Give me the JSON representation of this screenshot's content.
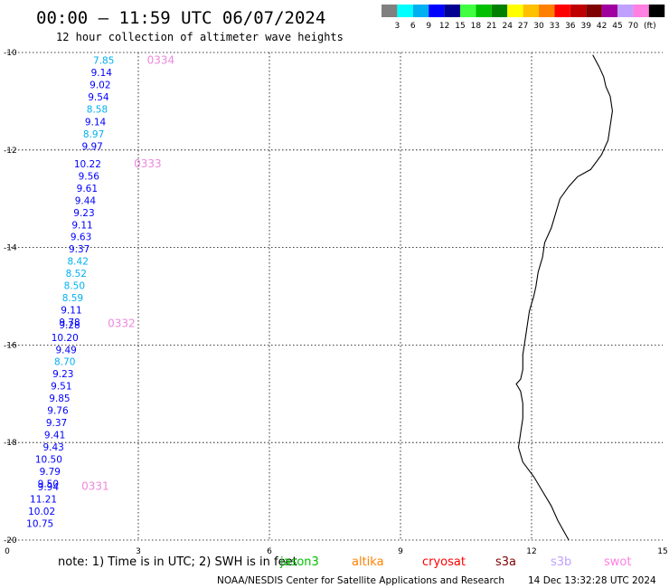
{
  "header": {
    "title": "00:00 – 11:59 UTC 06/07/2024",
    "subtitle": "12 hour collection of altimeter wave heights"
  },
  "legend": {
    "unit": "(ft)",
    "swatches": [
      {
        "label": "",
        "color": "#808080"
      },
      {
        "label": "3",
        "color": "#00ffff"
      },
      {
        "label": "6",
        "color": "#00b0f0"
      },
      {
        "label": "9",
        "color": "#0000ff"
      },
      {
        "label": "12",
        "color": "#000090"
      },
      {
        "label": "15",
        "color": "#40ff40"
      },
      {
        "label": "18",
        "color": "#00c000"
      },
      {
        "label": "21",
        "color": "#008000"
      },
      {
        "label": "24",
        "color": "#ffff00"
      },
      {
        "label": "27",
        "color": "#ffc000"
      },
      {
        "label": "30",
        "color": "#ff8000"
      },
      {
        "label": "33",
        "color": "#ff0000"
      },
      {
        "label": "36",
        "color": "#c00000"
      },
      {
        "label": "39",
        "color": "#800000"
      },
      {
        "label": "42",
        "color": "#a000a0"
      },
      {
        "label": "45",
        "color": "#c0a0ff"
      },
      {
        "label": "70",
        "color": "#ff80e0"
      },
      {
        "label": "",
        "color": "#000000"
      }
    ]
  },
  "map": {
    "lon_min": 0,
    "lon_max": 15,
    "lat_min": -20,
    "lat_max": -10,
    "x_ticks": [
      "0",
      "3",
      "6",
      "9",
      "12",
      "15"
    ],
    "y_ticks": [
      "-10",
      "-12",
      "-14",
      "-16",
      "-18",
      "-20"
    ],
    "coastline": [
      [
        13.4,
        -10.05
      ],
      [
        13.55,
        -10.3
      ],
      [
        13.65,
        -10.5
      ],
      [
        13.7,
        -10.7
      ],
      [
        13.8,
        -10.9
      ],
      [
        13.85,
        -11.2
      ],
      [
        13.8,
        -11.5
      ],
      [
        13.75,
        -11.8
      ],
      [
        13.6,
        -12.1
      ],
      [
        13.35,
        -12.4
      ],
      [
        13.05,
        -12.55
      ],
      [
        12.85,
        -12.75
      ],
      [
        12.65,
        -13.0
      ],
      [
        12.55,
        -13.3
      ],
      [
        12.45,
        -13.6
      ],
      [
        12.3,
        -13.9
      ],
      [
        12.25,
        -14.2
      ],
      [
        12.15,
        -14.5
      ],
      [
        12.1,
        -14.8
      ],
      [
        12.05,
        -15.0
      ],
      [
        11.95,
        -15.3
      ],
      [
        11.9,
        -15.6
      ],
      [
        11.85,
        -15.9
      ],
      [
        11.8,
        -16.2
      ],
      [
        11.8,
        -16.5
      ],
      [
        11.75,
        -16.7
      ],
      [
        11.65,
        -16.8
      ],
      [
        11.75,
        -16.95
      ],
      [
        11.8,
        -17.2
      ],
      [
        11.8,
        -17.5
      ],
      [
        11.75,
        -17.8
      ],
      [
        11.7,
        -18.1
      ],
      [
        11.8,
        -18.4
      ],
      [
        12.05,
        -18.7
      ],
      [
        12.25,
        -19.0
      ],
      [
        12.45,
        -19.3
      ],
      [
        12.6,
        -19.6
      ],
      [
        12.85,
        -20.0
      ]
    ]
  },
  "wave_values": [
    {
      "text": "7.85",
      "lon": 2.45,
      "lat": -10.16,
      "color": "#00b0f0"
    },
    {
      "text": "9.14",
      "lon": 2.4,
      "lat": -10.41,
      "color": "#0000ff"
    },
    {
      "text": "9.02",
      "lon": 2.37,
      "lat": -10.66,
      "color": "#0000ff"
    },
    {
      "text": "9.54",
      "lon": 2.33,
      "lat": -10.91,
      "color": "#0000ff"
    },
    {
      "text": "8.58",
      "lon": 2.3,
      "lat": -11.16,
      "color": "#00b0f0"
    },
    {
      "text": "9.14",
      "lon": 2.26,
      "lat": -11.42,
      "color": "#0000ff"
    },
    {
      "text": "8.97",
      "lon": 2.22,
      "lat": -11.67,
      "color": "#00b0f0"
    },
    {
      "text": "9.97",
      "lon": 2.19,
      "lat": -11.92,
      "color": "#0000ff"
    },
    {
      "text": "10.22",
      "lon": 2.15,
      "lat": -12.28,
      "color": "#0000ff"
    },
    {
      "text": "9.56",
      "lon": 2.11,
      "lat": -12.53,
      "color": "#0000ff"
    },
    {
      "text": "9.61",
      "lon": 2.07,
      "lat": -12.78,
      "color": "#0000ff"
    },
    {
      "text": "9.44",
      "lon": 2.03,
      "lat": -13.03,
      "color": "#0000ff"
    },
    {
      "text": "9.23",
      "lon": 2.0,
      "lat": -13.28,
      "color": "#0000ff"
    },
    {
      "text": "9.11",
      "lon": 1.96,
      "lat": -13.53,
      "color": "#0000ff"
    },
    {
      "text": "9.63",
      "lon": 1.93,
      "lat": -13.78,
      "color": "#0000ff"
    },
    {
      "text": "9.37",
      "lon": 1.89,
      "lat": -14.03,
      "color": "#0000ff"
    },
    {
      "text": "8.42",
      "lon": 1.86,
      "lat": -14.28,
      "color": "#00b0f0"
    },
    {
      "text": "8.52",
      "lon": 1.82,
      "lat": -14.53,
      "color": "#00b0f0"
    },
    {
      "text": "8.50",
      "lon": 1.78,
      "lat": -14.78,
      "color": "#00b0f0"
    },
    {
      "text": "8.59",
      "lon": 1.74,
      "lat": -15.03,
      "color": "#00b0f0"
    },
    {
      "text": "9.11",
      "lon": 1.71,
      "lat": -15.28,
      "color": "#0000ff"
    },
    {
      "text": "9.78",
      "lon": 1.67,
      "lat": -15.53,
      "color": "#0000ff"
    },
    {
      "text": "9.28",
      "lon": 1.67,
      "lat": -15.58,
      "color": "#0000ff"
    },
    {
      "text": "10.20",
      "lon": 1.63,
      "lat": -15.84,
      "color": "#0000ff"
    },
    {
      "text": "9.49",
      "lon": 1.59,
      "lat": -16.09,
      "color": "#0000ff"
    },
    {
      "text": "8.70",
      "lon": 1.56,
      "lat": -16.34,
      "color": "#00b0f0"
    },
    {
      "text": "9.23",
      "lon": 1.52,
      "lat": -16.59,
      "color": "#0000ff"
    },
    {
      "text": "9.51",
      "lon": 1.48,
      "lat": -16.84,
      "color": "#0000ff"
    },
    {
      "text": "9.85",
      "lon": 1.44,
      "lat": -17.09,
      "color": "#0000ff"
    },
    {
      "text": "9.76",
      "lon": 1.4,
      "lat": -17.34,
      "color": "#0000ff"
    },
    {
      "text": "9.37",
      "lon": 1.37,
      "lat": -17.59,
      "color": "#0000ff"
    },
    {
      "text": "9.41",
      "lon": 1.33,
      "lat": -17.84,
      "color": "#0000ff"
    },
    {
      "text": "9.43",
      "lon": 1.3,
      "lat": -18.09,
      "color": "#0000ff"
    },
    {
      "text": "10.50",
      "lon": 1.26,
      "lat": -18.34,
      "color": "#0000ff"
    },
    {
      "text": "9.79",
      "lon": 1.22,
      "lat": -18.59,
      "color": "#0000ff"
    },
    {
      "text": "9.50",
      "lon": 1.18,
      "lat": -18.84,
      "color": "#0000ff"
    },
    {
      "text": "9.94",
      "lon": 1.18,
      "lat": -18.91,
      "color": "#0000ff"
    },
    {
      "text": "11.21",
      "lon": 1.14,
      "lat": -19.16,
      "color": "#0000ff"
    },
    {
      "text": "10.02",
      "lon": 1.1,
      "lat": -19.41,
      "color": "#0000ff"
    },
    {
      "text": "10.75",
      "lon": 1.06,
      "lat": -19.66,
      "color": "#0000ff"
    }
  ],
  "pass_labels": [
    {
      "text": "0334",
      "lon": 3.2,
      "lat": -10.16
    },
    {
      "text": "0333",
      "lon": 2.9,
      "lat": -12.28
    },
    {
      "text": "0332",
      "lon": 2.3,
      "lat": -15.56
    },
    {
      "text": "0331",
      "lon": 1.7,
      "lat": -18.9
    }
  ],
  "note": "note: 1) Time is in UTC; 2) SWH is in feet",
  "satellites": [
    {
      "name": "jason3",
      "color": "#00c000"
    },
    {
      "name": "altika",
      "color": "#ff8000"
    },
    {
      "name": "cryosat",
      "color": "#ff0000"
    },
    {
      "name": "s3a",
      "color": "#800000"
    },
    {
      "name": "s3b",
      "color": "#c0a0ff"
    },
    {
      "name": "swot",
      "color": "#ff80e0"
    }
  ],
  "footer": {
    "credit": "NOAA/NESDIS Center for Satellite Applications and Research",
    "timestamp": "14 Dec 13:32:28 UTC 2024"
  }
}
